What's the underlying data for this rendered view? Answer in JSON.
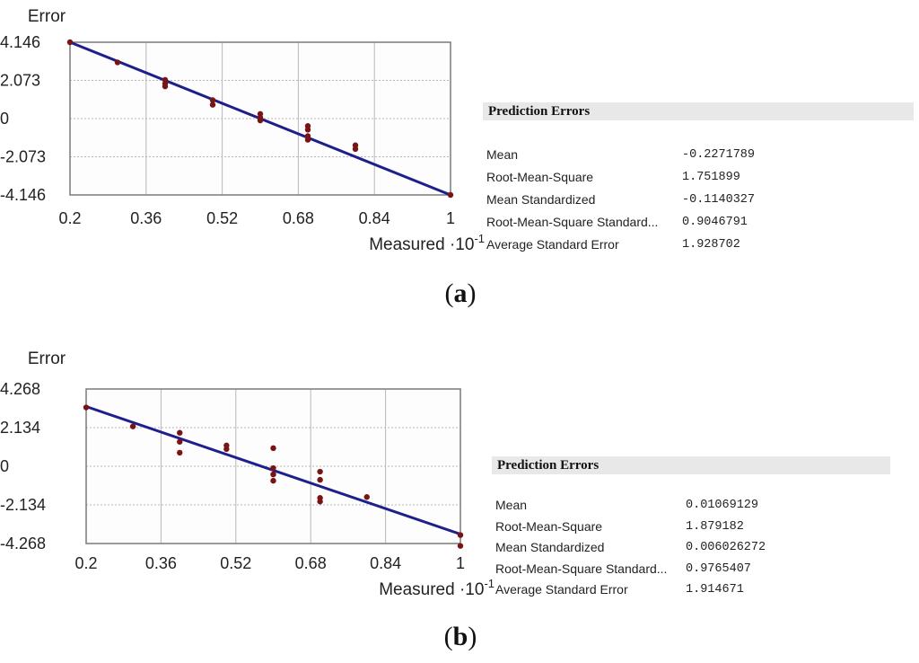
{
  "panels": [
    {
      "id": "a",
      "caption_letter": "a",
      "stats_title": "Prediction Errors",
      "stats": [
        {
          "label": "Mean",
          "value": "-0.2271789"
        },
        {
          "label": "Root-Mean-Square",
          "value": "1.751899"
        },
        {
          "label": "Mean Standardized",
          "value": "-0.1140327"
        },
        {
          "label": "Root-Mean-Square Standard...",
          "value": "0.9046791"
        },
        {
          "label": "Average Standard Error",
          "value": "1.928702"
        }
      ],
      "chart_data": {
        "type": "scatter",
        "ylabel": "Error",
        "xlabel": "Measured ·10",
        "xlabel_exponent": "-1",
        "xlim": [
          0.2,
          1.0
        ],
        "ylim": [
          -4.146,
          4.146
        ],
        "x_ticks": [
          "0.2",
          "0.36",
          "0.52",
          "0.68",
          "0.84",
          "1"
        ],
        "y_ticks": [
          "4.146",
          "2.073",
          "0",
          "-2.073",
          "-4.146"
        ],
        "grid": true,
        "regression_line": {
          "x": [
            0.2,
            1.0
          ],
          "y": [
            4.146,
            -4.146
          ]
        },
        "points": [
          {
            "x": 0.2,
            "y": 4.146
          },
          {
            "x": 0.3,
            "y": 3.05
          },
          {
            "x": 0.4,
            "y": 2.1
          },
          {
            "x": 0.4,
            "y": 1.9
          },
          {
            "x": 0.4,
            "y": 1.75
          },
          {
            "x": 0.5,
            "y": 1.0
          },
          {
            "x": 0.5,
            "y": 0.75
          },
          {
            "x": 0.6,
            "y": 0.25
          },
          {
            "x": 0.6,
            "y": 0.05
          },
          {
            "x": 0.6,
            "y": -0.1
          },
          {
            "x": 0.7,
            "y": -0.4
          },
          {
            "x": 0.7,
            "y": -0.6
          },
          {
            "x": 0.7,
            "y": -0.95
          },
          {
            "x": 0.7,
            "y": -1.15
          },
          {
            "x": 0.8,
            "y": -1.45
          },
          {
            "x": 0.8,
            "y": -1.65
          },
          {
            "x": 1.0,
            "y": -4.146
          }
        ]
      }
    },
    {
      "id": "b",
      "caption_letter": "b",
      "stats_title": "Prediction Errors",
      "stats": [
        {
          "label": "Mean",
          "value": "0.01069129"
        },
        {
          "label": "Root-Mean-Square",
          "value": "1.879182"
        },
        {
          "label": "Mean Standardized",
          "value": "0.006026272"
        },
        {
          "label": "Root-Mean-Square Standard...",
          "value": "0.9765407"
        },
        {
          "label": "Average Standard Error",
          "value": "1.914671"
        }
      ],
      "chart_data": {
        "type": "scatter",
        "ylabel": "Error",
        "xlabel": "Measured ·10",
        "xlabel_exponent": "-1",
        "xlim": [
          0.2,
          1.0
        ],
        "ylim": [
          -4.268,
          4.268
        ],
        "x_ticks": [
          "0.2",
          "0.36",
          "0.52",
          "0.68",
          "0.84",
          "1"
        ],
        "y_ticks": [
          "4.268",
          "2.134",
          "0",
          "-2.134",
          "-4.268"
        ],
        "grid": true,
        "regression_line": {
          "x": [
            0.2,
            1.0
          ],
          "y": [
            3.3,
            -3.75
          ]
        },
        "points": [
          {
            "x": 0.2,
            "y": 3.25
          },
          {
            "x": 0.3,
            "y": 2.2
          },
          {
            "x": 0.4,
            "y": 1.85
          },
          {
            "x": 0.4,
            "y": 1.35
          },
          {
            "x": 0.4,
            "y": 0.75
          },
          {
            "x": 0.5,
            "y": 1.15
          },
          {
            "x": 0.5,
            "y": 0.95
          },
          {
            "x": 0.6,
            "y": 1.0
          },
          {
            "x": 0.6,
            "y": -0.1
          },
          {
            "x": 0.6,
            "y": -0.45
          },
          {
            "x": 0.6,
            "y": -0.8
          },
          {
            "x": 0.7,
            "y": -0.3
          },
          {
            "x": 0.7,
            "y": -0.75
          },
          {
            "x": 0.7,
            "y": -1.75
          },
          {
            "x": 0.7,
            "y": -1.95
          },
          {
            "x": 0.8,
            "y": -1.7
          },
          {
            "x": 1.0,
            "y": -3.8
          },
          {
            "x": 1.0,
            "y": -4.4
          }
        ]
      }
    }
  ],
  "colors": {
    "line": "#1f1f8c",
    "point": "#7a1414",
    "grid": "#b8b8b8",
    "frame": "#7a7a7a",
    "plot_bg": "#fdfdfd"
  }
}
